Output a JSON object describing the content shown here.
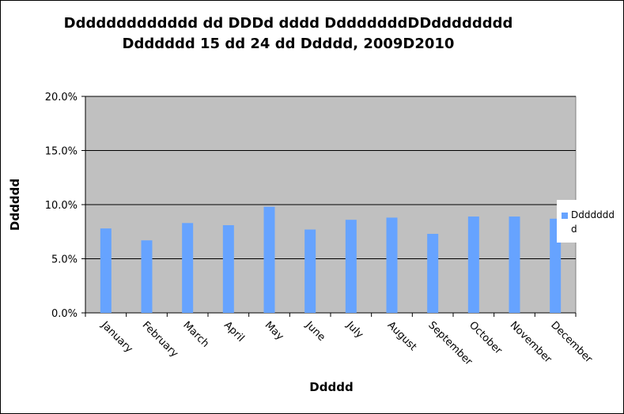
{
  "chart_data": {
    "type": "bar",
    "title": "Ddddddddddddd dd DDDd dddd DdddddddDDdddddddd",
    "subtitle": "Ddddddd 15 dd 24 dd Ddddd, 2009D2010",
    "xlabel": "Ddddd",
    "ylabel": "Dddddd",
    "categories": [
      "January",
      "February",
      "March",
      "April",
      "May",
      "June",
      "July",
      "August",
      "September",
      "October",
      "November",
      "December"
    ],
    "series": [
      {
        "name": "Ddddddd d",
        "color": "#66a3ff",
        "values": [
          7.8,
          6.7,
          8.3,
          8.1,
          9.8,
          7.7,
          8.6,
          8.8,
          7.3,
          8.9,
          8.9,
          8.7
        ]
      }
    ],
    "ylim": [
      0,
      20
    ],
    "yticks": [
      0,
      5,
      10,
      15,
      20
    ],
    "ytick_labels": [
      "0.0%",
      "5.0%",
      "10.0%",
      "15.0%",
      "20.0%"
    ],
    "grid": true,
    "plot_background": "#c0c0c0",
    "legend_position": "right"
  }
}
